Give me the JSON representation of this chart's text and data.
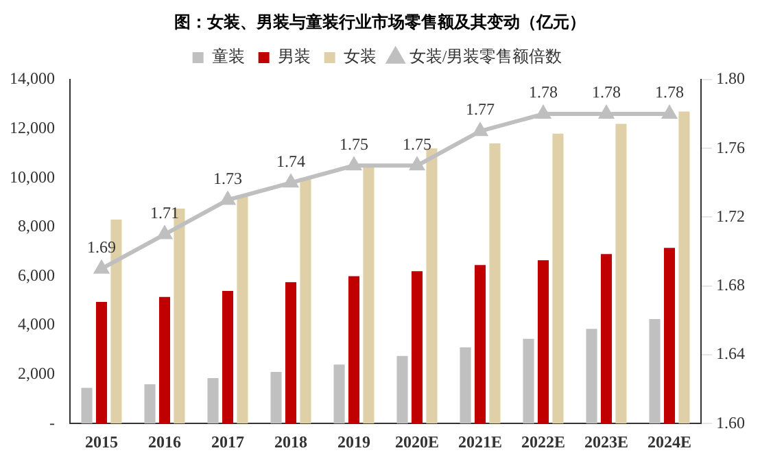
{
  "chart_data": {
    "type": "bar",
    "title": "图：女装、男装与童装行业市场零售额及其变动（亿元）",
    "categories": [
      "2015",
      "2016",
      "2017",
      "2018",
      "2019",
      "2020E",
      "2021E",
      "2022E",
      "2023E",
      "2024E"
    ],
    "series": [
      {
        "name": "童装",
        "color": "#c0c0c0",
        "values": [
          1450,
          1600,
          1850,
          2100,
          2400,
          2750,
          3100,
          3450,
          3850,
          4250
        ]
      },
      {
        "name": "男装",
        "color": "#c00000",
        "values": [
          4950,
          5150,
          5400,
          5750,
          6000,
          6200,
          6450,
          6650,
          6900,
          7150
        ]
      },
      {
        "name": "女装",
        "color": "#e0d0a8",
        "values": [
          8300,
          8750,
          9300,
          10000,
          10450,
          11200,
          11400,
          11800,
          12200,
          12700
        ]
      },
      {
        "name": "女装/男装零售额倍数",
        "type": "line",
        "axis": "y2",
        "color": "#bfbfbf",
        "marker": "triangle",
        "data_labels": true,
        "values": [
          1.69,
          1.71,
          1.73,
          1.74,
          1.75,
          1.75,
          1.77,
          1.78,
          1.78,
          1.78
        ]
      }
    ],
    "ylim": [
      0,
      14000
    ],
    "yticks": [
      {
        "value": 0,
        "label": "-"
      },
      {
        "value": 2000,
        "label": "2,000"
      },
      {
        "value": 4000,
        "label": "4,000"
      },
      {
        "value": 6000,
        "label": "6,000"
      },
      {
        "value": 8000,
        "label": "8,000"
      },
      {
        "value": 10000,
        "label": "10,000"
      },
      {
        "value": 12000,
        "label": "12,000"
      },
      {
        "value": 14000,
        "label": "14,000"
      }
    ],
    "y2lim": [
      1.6,
      1.8
    ],
    "y2ticks": [
      {
        "value": 1.6,
        "label": "1.60"
      },
      {
        "value": 1.64,
        "label": "1.64"
      },
      {
        "value": 1.68,
        "label": "1.68"
      },
      {
        "value": 1.72,
        "label": "1.72"
      },
      {
        "value": 1.76,
        "label": "1.76"
      },
      {
        "value": 1.8,
        "label": "1.80"
      }
    ],
    "legend": "top",
    "grid": false
  }
}
